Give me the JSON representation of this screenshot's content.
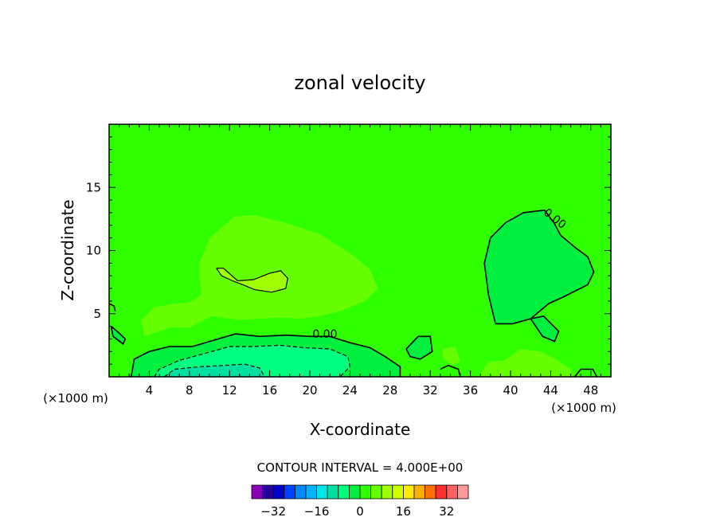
{
  "chart_data": {
    "type": "heatmap",
    "title": "zonal velocity",
    "xlabel": "X-coordinate",
    "ylabel": "Z-coordinate",
    "x_unit_note": "(×1000 m)",
    "x_unit_note_right": "(×1000 m)",
    "xlim": [
      0,
      50
    ],
    "ylim": [
      0,
      20
    ],
    "xticks": [
      4,
      8,
      12,
      16,
      20,
      24,
      28,
      32,
      36,
      40,
      44,
      48
    ],
    "yticks": [
      5,
      10,
      15
    ],
    "background_value": 0,
    "contour_interval_text": "CONTOUR INTERVAL = 4.000E+00",
    "contour_label_bottom": "0.00",
    "contour_label_right": "0.00",
    "colorbar": {
      "levels": [
        -36,
        -32,
        -28,
        -24,
        -20,
        -16,
        -12,
        -8,
        -4,
        0,
        4,
        8,
        12,
        16,
        20,
        24,
        28,
        32,
        36
      ],
      "tick_values": [
        -32,
        -16,
        0,
        16,
        32
      ],
      "tick_labels": [
        "−32",
        "−16",
        "0",
        "16",
        "32"
      ],
      "colors": [
        "#8a00b8",
        "#2800a0",
        "#0000c8",
        "#0040ff",
        "#0088ff",
        "#00b4ff",
        "#00e6e6",
        "#00e0a0",
        "#00ff80",
        "#00f040",
        "#30ff00",
        "#66ff00",
        "#a0ff00",
        "#d0ff00",
        "#ffea00",
        "#ffb000",
        "#ff7000",
        "#ff3030",
        "#ff6060",
        "#ff9a9a"
      ]
    },
    "regions": [
      {
        "name": "upper-left positive lobe",
        "value": 4,
        "polygon": [
          [
            9,
            9
          ],
          [
            10,
            11
          ],
          [
            12.5,
            12.7
          ],
          [
            14.5,
            12.8
          ],
          [
            17.5,
            12.2
          ],
          [
            21,
            11.3
          ],
          [
            24,
            9.8
          ],
          [
            26,
            8.5
          ],
          [
            26.8,
            7
          ],
          [
            25.5,
            6
          ],
          [
            23,
            5.2
          ],
          [
            21,
            4.8
          ],
          [
            19,
            4.6
          ],
          [
            17,
            4.7
          ],
          [
            13,
            4.5
          ],
          [
            10.2,
            4.8
          ],
          [
            8,
            3.9
          ],
          [
            6,
            3.9
          ],
          [
            3.5,
            3.2
          ],
          [
            3.2,
            4.5
          ],
          [
            4.5,
            5.5
          ],
          [
            6.5,
            5.8
          ],
          [
            8,
            5.9
          ],
          [
            9.2,
            6.5
          ],
          [
            9,
            8
          ]
        ]
      },
      {
        "name": "upper-left inner maximum",
        "value": 8,
        "polygon": [
          [
            10.7,
            8.6
          ],
          [
            11.4,
            8.6
          ],
          [
            12.8,
            7.6
          ],
          [
            14.4,
            7.7
          ],
          [
            16,
            8.2
          ],
          [
            17.1,
            8.4
          ],
          [
            17.8,
            7.8
          ],
          [
            17.6,
            7.0
          ],
          [
            16.2,
            6.7
          ],
          [
            14.5,
            6.9
          ],
          [
            13.3,
            7.3
          ],
          [
            12.3,
            7.6
          ],
          [
            11.2,
            8.0
          ]
        ]
      },
      {
        "name": "right negative lobe",
        "value": -4,
        "polygon": [
          [
            38.5,
            4.2
          ],
          [
            37.8,
            6.5
          ],
          [
            37.4,
            9
          ],
          [
            38,
            11
          ],
          [
            39.5,
            12.2
          ],
          [
            41.3,
            13
          ],
          [
            43.4,
            13.2
          ],
          [
            44.4,
            12.1
          ],
          [
            45,
            11.2
          ],
          [
            46.5,
            10.2
          ],
          [
            47.7,
            9.5
          ],
          [
            48.3,
            8.3
          ],
          [
            47.7,
            7.3
          ],
          [
            45.2,
            6.3
          ],
          [
            43.8,
            5.8
          ],
          [
            42,
            4.6
          ],
          [
            40.2,
            4.2
          ]
        ]
      },
      {
        "name": "bottom negative layer",
        "value": -4,
        "polygon": [
          [
            2.2,
            0
          ],
          [
            2.5,
            1.4
          ],
          [
            4,
            2
          ],
          [
            6,
            2.4
          ],
          [
            8.3,
            2.4
          ],
          [
            10,
            2.8
          ],
          [
            12.6,
            3.4
          ],
          [
            15,
            3.2
          ],
          [
            17.6,
            3.3
          ],
          [
            20,
            3.2
          ],
          [
            22,
            3.2
          ],
          [
            24,
            2.7
          ],
          [
            26,
            2.3
          ],
          [
            27.5,
            1.6
          ],
          [
            29,
            0.8
          ],
          [
            29,
            0
          ]
        ]
      },
      {
        "name": "bottom inner negative",
        "value": -8,
        "polygon": [
          [
            4.5,
            0
          ],
          [
            5,
            0.6
          ],
          [
            7,
            1.3
          ],
          [
            9.3,
            1.8
          ],
          [
            12,
            2.4
          ],
          [
            14.5,
            2.4
          ],
          [
            17,
            2.5
          ],
          [
            19.5,
            2.3
          ],
          [
            22,
            2.2
          ],
          [
            23.8,
            1.6
          ],
          [
            24,
            0.8
          ],
          [
            23,
            0
          ]
        ]
      },
      {
        "name": "bottom core negative",
        "value": -12,
        "polygon": [
          [
            5.5,
            0
          ],
          [
            6.5,
            0.6
          ],
          [
            9,
            0.8
          ],
          [
            11.5,
            0.9
          ],
          [
            13.5,
            1
          ],
          [
            15,
            0.7
          ],
          [
            15.5,
            0
          ]
        ]
      },
      {
        "name": "small negative patch x31",
        "value": -4,
        "polygon": [
          [
            29.6,
            2.2
          ],
          [
            30.8,
            3.2
          ],
          [
            32,
            3.2
          ],
          [
            32.2,
            2
          ],
          [
            31,
            1.4
          ],
          [
            30,
            1.6
          ]
        ]
      },
      {
        "name": "small negative patch x43",
        "value": -4,
        "polygon": [
          [
            42,
            4.6
          ],
          [
            43.3,
            4.8
          ],
          [
            44.8,
            3.6
          ],
          [
            44.4,
            2.8
          ],
          [
            43.2,
            3.2
          ]
        ]
      },
      {
        "name": "small negative patch left",
        "value": -4,
        "polygon": [
          [
            0.2,
            4
          ],
          [
            0.8,
            3.6
          ],
          [
            1.6,
            3
          ],
          [
            1.4,
            2.6
          ],
          [
            0.4,
            3.2
          ]
        ]
      },
      {
        "name": "lower-right positive patches",
        "value": 4,
        "polygon": [
          [
            36.8,
            0
          ],
          [
            37.8,
            1.2
          ],
          [
            39.4,
            1.3
          ],
          [
            41,
            2.2
          ],
          [
            43,
            2
          ],
          [
            44.5,
            1.4
          ],
          [
            46,
            0.6
          ],
          [
            46.2,
            0
          ]
        ]
      },
      {
        "name": "lower-middle positive patch",
        "value": 4,
        "polygon": [
          [
            33.3,
            2.2
          ],
          [
            34.5,
            2.4
          ],
          [
            35,
            1.2
          ],
          [
            34,
            0.9
          ],
          [
            33.2,
            1.6
          ]
        ]
      }
    ],
    "contour_lines": [
      {
        "level": 8,
        "style": "solid",
        "points": [
          [
            10.7,
            8.6
          ],
          [
            11.4,
            8.6
          ],
          [
            12.8,
            7.6
          ],
          [
            14.4,
            7.7
          ],
          [
            16,
            8.2
          ],
          [
            17.1,
            8.4
          ],
          [
            17.8,
            7.8
          ],
          [
            17.6,
            7.0
          ],
          [
            16.2,
            6.7
          ],
          [
            14.5,
            6.9
          ],
          [
            13.3,
            7.3
          ],
          [
            12.3,
            7.6
          ],
          [
            11.2,
            8.0
          ],
          [
            10.7,
            8.6
          ]
        ]
      },
      {
        "level": 0,
        "style": "solid",
        "points": [
          [
            38.5,
            4.2
          ],
          [
            37.8,
            6.5
          ],
          [
            37.4,
            9
          ],
          [
            38,
            11
          ],
          [
            39.5,
            12.2
          ],
          [
            41.3,
            13
          ],
          [
            43.4,
            13.2
          ],
          [
            44.4,
            12.1
          ],
          [
            45,
            11.2
          ],
          [
            46.5,
            10.2
          ],
          [
            47.7,
            9.5
          ],
          [
            48.3,
            8.3
          ],
          [
            47.7,
            7.3
          ],
          [
            45.2,
            6.3
          ],
          [
            43.8,
            5.8
          ],
          [
            42,
            4.6
          ],
          [
            40.2,
            4.2
          ],
          [
            38.5,
            4.2
          ]
        ]
      },
      {
        "level": 0,
        "style": "solid",
        "points": [
          [
            2.2,
            0
          ],
          [
            2.5,
            1.4
          ],
          [
            4,
            2
          ],
          [
            6,
            2.4
          ],
          [
            8.3,
            2.4
          ],
          [
            10,
            2.8
          ],
          [
            12.6,
            3.4
          ],
          [
            15,
            3.2
          ],
          [
            17.6,
            3.3
          ],
          [
            20,
            3.2
          ],
          [
            22,
            3.2
          ],
          [
            24,
            2.7
          ],
          [
            26,
            2.3
          ],
          [
            27.5,
            1.6
          ],
          [
            29,
            0.8
          ],
          [
            29,
            0
          ]
        ]
      },
      {
        "level": -4,
        "style": "dashed",
        "points": [
          [
            4.5,
            0
          ],
          [
            5,
            0.6
          ],
          [
            7,
            1.3
          ],
          [
            9.3,
            1.8
          ],
          [
            12,
            2.4
          ],
          [
            14.5,
            2.4
          ],
          [
            17,
            2.5
          ],
          [
            19.5,
            2.3
          ],
          [
            22,
            2.2
          ],
          [
            23.8,
            1.6
          ],
          [
            24,
            0.8
          ],
          [
            23,
            0
          ]
        ]
      },
      {
        "level": -8,
        "style": "dashed",
        "points": [
          [
            5.5,
            0
          ],
          [
            6.5,
            0.6
          ],
          [
            9,
            0.8
          ],
          [
            11.5,
            0.9
          ],
          [
            13.5,
            1
          ],
          [
            15,
            0.7
          ],
          [
            15.5,
            0
          ]
        ]
      },
      {
        "level": 0,
        "style": "solid",
        "points": [
          [
            29.6,
            2.2
          ],
          [
            30.8,
            3.2
          ],
          [
            32,
            3.2
          ],
          [
            32.2,
            2
          ],
          [
            31,
            1.4
          ],
          [
            30,
            1.6
          ],
          [
            29.6,
            2.2
          ]
        ]
      },
      {
        "level": 0,
        "style": "solid",
        "points": [
          [
            42,
            4.6
          ],
          [
            43.3,
            4.8
          ],
          [
            44.8,
            3.6
          ],
          [
            44.4,
            2.8
          ],
          [
            43.2,
            3.2
          ],
          [
            42,
            4.6
          ]
        ]
      },
      {
        "level": 0,
        "style": "solid",
        "points": [
          [
            0.2,
            4
          ],
          [
            0.8,
            3.6
          ],
          [
            1.6,
            3
          ],
          [
            1.4,
            2.6
          ],
          [
            0.4,
            3.2
          ],
          [
            0.2,
            4
          ]
        ]
      },
      {
        "level": 0,
        "style": "solid",
        "points": [
          [
            33,
            0.6
          ],
          [
            33.8,
            0.9
          ],
          [
            34.8,
            0.6
          ],
          [
            35,
            0
          ]
        ]
      },
      {
        "level": 0,
        "style": "solid",
        "points": [
          [
            46.4,
            0
          ],
          [
            47,
            0.6
          ],
          [
            48.2,
            0.6
          ],
          [
            48.6,
            0
          ]
        ]
      },
      {
        "level": 0,
        "style": "solid",
        "points": [
          [
            0,
            5.8
          ],
          [
            0.5,
            5.6
          ],
          [
            0.6,
            5.2
          ]
        ]
      }
    ]
  }
}
